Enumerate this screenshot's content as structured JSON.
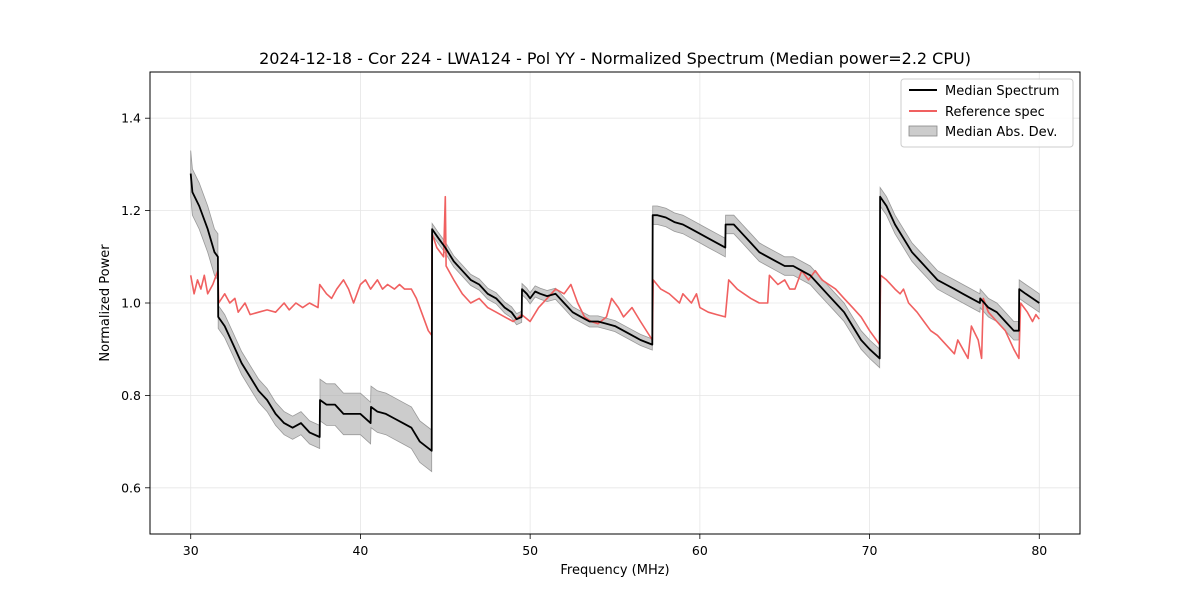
{
  "chart_data": {
    "type": "line",
    "title": "2024-12-18 - Cor 224 - LWA124 - Pol YY - Normalized Spectrum (Median power=2.2 CPU)",
    "xlabel": "Frequency (MHz)",
    "ylabel": "Normalized Power",
    "xlim": [
      27.6,
      82.4
    ],
    "ylim": [
      0.5,
      1.5
    ],
    "xticks": [
      30,
      40,
      50,
      60,
      70,
      80
    ],
    "yticks": [
      0.6,
      0.8,
      1.0,
      1.2,
      1.4
    ],
    "xtick_labels": [
      "30",
      "40",
      "50",
      "60",
      "70",
      "80"
    ],
    "ytick_labels": [
      "0.6",
      "0.8",
      "1.0",
      "1.2",
      "1.4"
    ],
    "grid": true,
    "legend_position": "top-right",
    "series": [
      {
        "name": "Median Spectrum",
        "color": "#000000",
        "points": [
          [
            30.0,
            1.28
          ],
          [
            30.1,
            1.24
          ],
          [
            30.5,
            1.21
          ],
          [
            31.0,
            1.16
          ],
          [
            31.4,
            1.11
          ],
          [
            31.6,
            1.1
          ],
          [
            31.62,
            0.97
          ],
          [
            32.0,
            0.95
          ],
          [
            32.5,
            0.91
          ],
          [
            33.0,
            0.87
          ],
          [
            33.5,
            0.84
          ],
          [
            34.0,
            0.81
          ],
          [
            34.5,
            0.79
          ],
          [
            35.0,
            0.76
          ],
          [
            35.5,
            0.74
          ],
          [
            36.0,
            0.73
          ],
          [
            36.5,
            0.74
          ],
          [
            37.0,
            0.72
          ],
          [
            37.6,
            0.71
          ],
          [
            37.62,
            0.79
          ],
          [
            38.0,
            0.78
          ],
          [
            38.5,
            0.78
          ],
          [
            39.0,
            0.76
          ],
          [
            39.5,
            0.76
          ],
          [
            40.0,
            0.76
          ],
          [
            40.6,
            0.74
          ],
          [
            40.62,
            0.775
          ],
          [
            41.0,
            0.765
          ],
          [
            41.5,
            0.76
          ],
          [
            42.0,
            0.75
          ],
          [
            42.5,
            0.74
          ],
          [
            43.0,
            0.73
          ],
          [
            43.5,
            0.7
          ],
          [
            44.2,
            0.68
          ],
          [
            44.22,
            1.16
          ],
          [
            44.6,
            1.14
          ],
          [
            45.0,
            1.12
          ],
          [
            45.5,
            1.09
          ],
          [
            46.0,
            1.07
          ],
          [
            46.5,
            1.05
          ],
          [
            47.0,
            1.04
          ],
          [
            47.5,
            1.02
          ],
          [
            48.0,
            1.01
          ],
          [
            48.5,
            0.99
          ],
          [
            48.9,
            0.98
          ],
          [
            49.2,
            0.965
          ],
          [
            49.5,
            0.97
          ],
          [
            49.52,
            1.03
          ],
          [
            49.8,
            1.02
          ],
          [
            50.0,
            1.01
          ],
          [
            50.3,
            1.025
          ],
          [
            50.6,
            1.02
          ],
          [
            51.0,
            1.015
          ],
          [
            51.5,
            1.02
          ],
          [
            52.0,
            1.0
          ],
          [
            52.5,
            0.98
          ],
          [
            53.0,
            0.97
          ],
          [
            53.5,
            0.96
          ],
          [
            54.0,
            0.96
          ],
          [
            54.5,
            0.955
          ],
          [
            55.0,
            0.95
          ],
          [
            55.5,
            0.94
          ],
          [
            56.0,
            0.93
          ],
          [
            56.5,
            0.92
          ],
          [
            57.2,
            0.91
          ],
          [
            57.22,
            1.19
          ],
          [
            57.5,
            1.19
          ],
          [
            58.0,
            1.185
          ],
          [
            58.5,
            1.175
          ],
          [
            59.0,
            1.17
          ],
          [
            59.5,
            1.16
          ],
          [
            60.0,
            1.15
          ],
          [
            60.5,
            1.14
          ],
          [
            61.0,
            1.13
          ],
          [
            61.5,
            1.12
          ],
          [
            61.52,
            1.17
          ],
          [
            62.0,
            1.17
          ],
          [
            62.5,
            1.15
          ],
          [
            63.0,
            1.13
          ],
          [
            63.5,
            1.11
          ],
          [
            64.0,
            1.1
          ],
          [
            64.5,
            1.09
          ],
          [
            65.0,
            1.08
          ],
          [
            65.5,
            1.08
          ],
          [
            66.0,
            1.07
          ],
          [
            66.5,
            1.06
          ],
          [
            67.0,
            1.04
          ],
          [
            67.5,
            1.02
          ],
          [
            68.0,
            1.0
          ],
          [
            68.5,
            0.98
          ],
          [
            69.0,
            0.95
          ],
          [
            69.5,
            0.92
          ],
          [
            70.0,
            0.9
          ],
          [
            70.6,
            0.88
          ],
          [
            70.62,
            1.23
          ],
          [
            71.0,
            1.21
          ],
          [
            71.5,
            1.17
          ],
          [
            72.0,
            1.14
          ],
          [
            72.5,
            1.11
          ],
          [
            73.0,
            1.09
          ],
          [
            73.5,
            1.07
          ],
          [
            74.0,
            1.05
          ],
          [
            74.5,
            1.04
          ],
          [
            75.0,
            1.03
          ],
          [
            75.5,
            1.02
          ],
          [
            76.0,
            1.01
          ],
          [
            76.5,
            1.0
          ],
          [
            76.52,
            1.01
          ],
          [
            77.0,
            0.99
          ],
          [
            77.5,
            0.98
          ],
          [
            78.0,
            0.96
          ],
          [
            78.5,
            0.94
          ],
          [
            78.8,
            0.94
          ],
          [
            78.82,
            1.03
          ],
          [
            79.2,
            1.02
          ],
          [
            79.6,
            1.01
          ],
          [
            80.0,
            1.0
          ]
        ]
      },
      {
        "name": "Reference spec",
        "color": "#f06060",
        "points": [
          [
            30.0,
            1.06
          ],
          [
            30.2,
            1.02
          ],
          [
            30.4,
            1.05
          ],
          [
            30.6,
            1.03
          ],
          [
            30.8,
            1.06
          ],
          [
            31.0,
            1.02
          ],
          [
            31.3,
            1.04
          ],
          [
            31.6,
            1.07
          ],
          [
            31.65,
            1.0
          ],
          [
            32.0,
            1.02
          ],
          [
            32.3,
            1.0
          ],
          [
            32.6,
            1.01
          ],
          [
            32.8,
            0.98
          ],
          [
            33.2,
            1.0
          ],
          [
            33.5,
            0.975
          ],
          [
            34.0,
            0.98
          ],
          [
            34.5,
            0.985
          ],
          [
            35.0,
            0.98
          ],
          [
            35.5,
            1.0
          ],
          [
            35.8,
            0.985
          ],
          [
            36.2,
            1.0
          ],
          [
            36.6,
            0.99
          ],
          [
            37.0,
            1.0
          ],
          [
            37.5,
            0.99
          ],
          [
            37.6,
            1.04
          ],
          [
            38.0,
            1.02
          ],
          [
            38.3,
            1.01
          ],
          [
            38.6,
            1.03
          ],
          [
            39.0,
            1.05
          ],
          [
            39.3,
            1.03
          ],
          [
            39.6,
            1.0
          ],
          [
            40.0,
            1.04
          ],
          [
            40.3,
            1.05
          ],
          [
            40.6,
            1.03
          ],
          [
            41.0,
            1.05
          ],
          [
            41.3,
            1.03
          ],
          [
            41.6,
            1.04
          ],
          [
            42.0,
            1.03
          ],
          [
            42.3,
            1.04
          ],
          [
            42.6,
            1.03
          ],
          [
            43.0,
            1.03
          ],
          [
            43.3,
            1.01
          ],
          [
            43.6,
            0.98
          ],
          [
            44.0,
            0.94
          ],
          [
            44.2,
            0.93
          ],
          [
            44.22,
            1.15
          ],
          [
            44.5,
            1.12
          ],
          [
            44.9,
            1.1
          ],
          [
            45.0,
            1.23
          ],
          [
            45.05,
            1.08
          ],
          [
            45.5,
            1.05
          ],
          [
            46.0,
            1.02
          ],
          [
            46.5,
            1.0
          ],
          [
            47.0,
            1.01
          ],
          [
            47.5,
            0.99
          ],
          [
            48.0,
            0.98
          ],
          [
            48.5,
            0.97
          ],
          [
            49.0,
            0.96
          ],
          [
            49.5,
            0.975
          ],
          [
            50.0,
            0.96
          ],
          [
            50.5,
            0.99
          ],
          [
            51.0,
            1.01
          ],
          [
            51.5,
            1.03
          ],
          [
            52.0,
            1.02
          ],
          [
            52.4,
            1.04
          ],
          [
            52.8,
            1.0
          ],
          [
            53.2,
            0.97
          ],
          [
            53.6,
            0.96
          ],
          [
            54.0,
            0.955
          ],
          [
            54.5,
            0.97
          ],
          [
            54.8,
            1.01
          ],
          [
            55.2,
            0.99
          ],
          [
            55.5,
            0.97
          ],
          [
            56.0,
            0.99
          ],
          [
            56.5,
            0.96
          ],
          [
            57.2,
            0.92
          ],
          [
            57.25,
            1.05
          ],
          [
            57.7,
            1.03
          ],
          [
            58.2,
            1.02
          ],
          [
            58.8,
            1.0
          ],
          [
            59.0,
            1.02
          ],
          [
            59.5,
            1.0
          ],
          [
            59.8,
            1.02
          ],
          [
            60.0,
            0.99
          ],
          [
            60.5,
            0.98
          ],
          [
            61.0,
            0.975
          ],
          [
            61.5,
            0.97
          ],
          [
            61.7,
            1.05
          ],
          [
            62.2,
            1.03
          ],
          [
            62.6,
            1.02
          ],
          [
            63.0,
            1.01
          ],
          [
            63.5,
            1.0
          ],
          [
            64.0,
            1.0
          ],
          [
            64.1,
            1.06
          ],
          [
            64.6,
            1.04
          ],
          [
            65.0,
            1.05
          ],
          [
            65.3,
            1.03
          ],
          [
            65.6,
            1.03
          ],
          [
            66.0,
            1.07
          ],
          [
            66.4,
            1.05
          ],
          [
            66.8,
            1.07
          ],
          [
            67.2,
            1.05
          ],
          [
            67.6,
            1.04
          ],
          [
            68.0,
            1.03
          ],
          [
            68.5,
            1.01
          ],
          [
            69.0,
            0.99
          ],
          [
            69.5,
            0.97
          ],
          [
            70.0,
            0.94
          ],
          [
            70.6,
            0.91
          ],
          [
            70.65,
            1.06
          ],
          [
            71.0,
            1.05
          ],
          [
            71.5,
            1.03
          ],
          [
            71.8,
            1.02
          ],
          [
            72.0,
            1.03
          ],
          [
            72.3,
            1.0
          ],
          [
            72.8,
            0.98
          ],
          [
            73.2,
            0.96
          ],
          [
            73.6,
            0.94
          ],
          [
            74.0,
            0.93
          ],
          [
            74.5,
            0.91
          ],
          [
            75.0,
            0.89
          ],
          [
            75.2,
            0.92
          ],
          [
            75.5,
            0.9
          ],
          [
            75.8,
            0.88
          ],
          [
            76.0,
            0.95
          ],
          [
            76.4,
            0.92
          ],
          [
            76.6,
            0.88
          ],
          [
            76.7,
            1.01
          ],
          [
            77.0,
            0.98
          ],
          [
            77.5,
            0.96
          ],
          [
            78.0,
            0.94
          ],
          [
            78.5,
            0.9
          ],
          [
            78.8,
            0.88
          ],
          [
            78.9,
            1.0
          ],
          [
            79.3,
            0.98
          ],
          [
            79.6,
            0.96
          ],
          [
            79.8,
            0.975
          ],
          [
            80.0,
            0.965
          ]
        ]
      }
    ],
    "band": {
      "name": "Median Abs. Dev.",
      "color": "#aaaaaa",
      "center_series": "Median Spectrum",
      "segments": [
        {
          "x_range": [
            30.0,
            31.6
          ],
          "half_width": 0.05
        },
        {
          "x_range": [
            31.62,
            37.6
          ],
          "half_width": 0.025
        },
        {
          "x_range": [
            37.62,
            44.2
          ],
          "half_width": 0.045
        },
        {
          "x_range": [
            44.22,
            57.2
          ],
          "half_width": 0.012
        },
        {
          "x_range": [
            57.22,
            70.6
          ],
          "half_width": 0.02
        },
        {
          "x_range": [
            70.62,
            80.0
          ],
          "half_width": 0.02
        }
      ]
    }
  }
}
